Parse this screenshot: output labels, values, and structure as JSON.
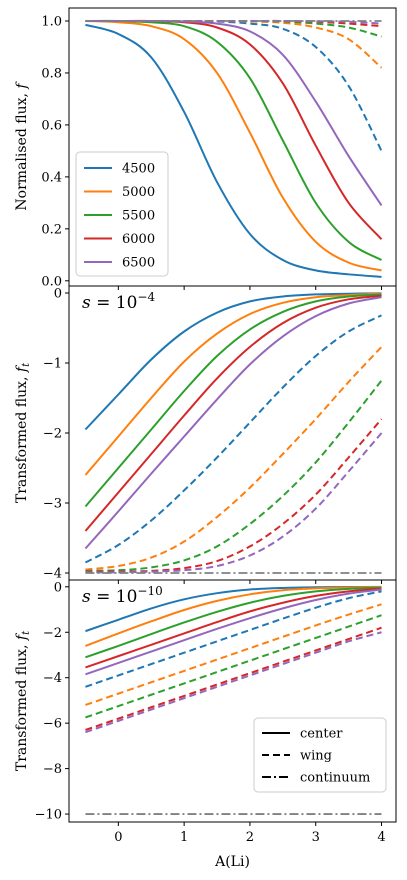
{
  "colors": {
    "4500": "#1f77b4",
    "5000": "#ff7f0e",
    "5500": "#2ca02c",
    "6000": "#d62728",
    "6500": "#9467bd",
    "continuum": "#808080",
    "legend_line": "#000000"
  },
  "chart_data": [
    {
      "type": "line",
      "panel": "top",
      "ylabel": "Normalised flux, f",
      "ylim": [
        -0.02,
        1.05
      ],
      "yticks": [
        0.0,
        0.2,
        0.4,
        0.6,
        0.8,
        1.0
      ],
      "ytick_labels": [
        "0.0",
        "0.2",
        "0.4",
        "0.6",
        "0.8",
        "1.0"
      ],
      "x": [
        -0.5,
        0.0,
        0.5,
        1.0,
        1.5,
        2.0,
        2.5,
        3.0,
        3.5,
        4.0
      ],
      "series": [
        {
          "name": "4500",
          "style": "center",
          "color": "4500",
          "values": [
            0.985,
            0.95,
            0.86,
            0.65,
            0.38,
            0.18,
            0.08,
            0.04,
            0.025,
            0.015
          ]
        },
        {
          "name": "5000",
          "style": "center",
          "color": "5000",
          "values": [
            1.0,
            0.995,
            0.98,
            0.93,
            0.8,
            0.57,
            0.32,
            0.15,
            0.07,
            0.04
          ]
        },
        {
          "name": "5500",
          "style": "center",
          "color": "5500",
          "values": [
            1.0,
            1.0,
            0.995,
            0.98,
            0.92,
            0.78,
            0.54,
            0.3,
            0.15,
            0.08
          ]
        },
        {
          "name": "6000",
          "style": "center",
          "color": "6000",
          "values": [
            1.0,
            1.0,
            1.0,
            0.995,
            0.975,
            0.91,
            0.76,
            0.52,
            0.3,
            0.16
          ]
        },
        {
          "name": "6500",
          "style": "center",
          "color": "6500",
          "values": [
            1.0,
            1.0,
            1.0,
            0.998,
            0.99,
            0.96,
            0.87,
            0.69,
            0.48,
            0.29
          ]
        },
        {
          "name": "4500",
          "style": "wing",
          "color": "4500",
          "values": [
            1.0,
            1.0,
            1.0,
            1.0,
            0.998,
            0.99,
            0.97,
            0.9,
            0.75,
            0.5
          ]
        },
        {
          "name": "5000",
          "style": "wing",
          "color": "5000",
          "values": [
            1.0,
            1.0,
            1.0,
            1.0,
            1.0,
            0.998,
            0.993,
            0.975,
            0.93,
            0.82
          ]
        },
        {
          "name": "5500",
          "style": "wing",
          "color": "5500",
          "values": [
            1.0,
            1.0,
            1.0,
            1.0,
            1.0,
            1.0,
            0.998,
            0.99,
            0.975,
            0.94
          ]
        },
        {
          "name": "6000",
          "style": "wing",
          "color": "6000",
          "values": [
            1.0,
            1.0,
            1.0,
            1.0,
            1.0,
            1.0,
            1.0,
            0.997,
            0.99,
            0.98
          ]
        },
        {
          "name": "6500",
          "style": "wing",
          "color": "6500",
          "values": [
            1.0,
            1.0,
            1.0,
            1.0,
            1.0,
            1.0,
            1.0,
            0.999,
            0.997,
            0.99
          ]
        },
        {
          "name": "",
          "style": "continuum",
          "color": "continuum",
          "values": [
            1.0,
            1.0,
            1.0,
            1.0,
            1.0,
            1.0,
            1.0,
            1.0,
            1.0,
            1.0
          ]
        }
      ],
      "legend": {
        "placement": "lower-left",
        "entries": [
          "4500",
          "5000",
          "5500",
          "6000",
          "6500"
        ]
      }
    },
    {
      "type": "line",
      "panel": "middle",
      "ylabel": "Transformed flux, f_t",
      "annotation": "s = 10^-4",
      "ylim": [
        -4.1,
        0.1
      ],
      "yticks": [
        -4,
        -3,
        -2,
        -1,
        0
      ],
      "ytick_labels": [
        "−4",
        "−3",
        "−2",
        "−1",
        "0"
      ],
      "x": [
        -0.5,
        0.0,
        0.5,
        1.0,
        1.5,
        2.0,
        2.5,
        3.0,
        3.5,
        4.0
      ],
      "series": [
        {
          "name": "4500",
          "style": "center",
          "color": "4500",
          "values": [
            -1.95,
            -1.45,
            -0.95,
            -0.55,
            -0.28,
            -0.12,
            -0.05,
            -0.02,
            -0.01,
            -0.005
          ]
        },
        {
          "name": "5000",
          "style": "center",
          "color": "5000",
          "values": [
            -2.6,
            -2.05,
            -1.5,
            -0.98,
            -0.58,
            -0.3,
            -0.14,
            -0.06,
            -0.03,
            -0.01
          ]
        },
        {
          "name": "5500",
          "style": "center",
          "color": "5500",
          "values": [
            -3.05,
            -2.5,
            -1.95,
            -1.4,
            -0.9,
            -0.52,
            -0.27,
            -0.12,
            -0.05,
            -0.02
          ]
        },
        {
          "name": "6000",
          "style": "center",
          "color": "6000",
          "values": [
            -3.4,
            -2.85,
            -2.3,
            -1.75,
            -1.22,
            -0.77,
            -0.43,
            -0.21,
            -0.09,
            -0.04
          ]
        },
        {
          "name": "6500",
          "style": "center",
          "color": "6500",
          "values": [
            -3.65,
            -3.12,
            -2.58,
            -2.05,
            -1.52,
            -1.02,
            -0.62,
            -0.33,
            -0.15,
            -0.06
          ]
        },
        {
          "name": "4500",
          "style": "wing",
          "color": "4500",
          "values": [
            -3.85,
            -3.6,
            -3.25,
            -2.82,
            -2.35,
            -1.85,
            -1.35,
            -0.9,
            -0.55,
            -0.32
          ]
        },
        {
          "name": "5000",
          "style": "wing",
          "color": "5000",
          "values": [
            -3.95,
            -3.9,
            -3.78,
            -3.55,
            -3.2,
            -2.78,
            -2.3,
            -1.8,
            -1.27,
            -0.77
          ]
        },
        {
          "name": "5500",
          "style": "wing",
          "color": "5500",
          "values": [
            -3.97,
            -3.96,
            -3.92,
            -3.82,
            -3.62,
            -3.3,
            -2.9,
            -2.42,
            -1.85,
            -1.25
          ]
        },
        {
          "name": "6000",
          "style": "wing",
          "color": "6000",
          "values": [
            -3.98,
            -3.98,
            -3.97,
            -3.93,
            -3.83,
            -3.62,
            -3.3,
            -2.88,
            -2.35,
            -1.8
          ]
        },
        {
          "name": "6500",
          "style": "wing",
          "color": "6500",
          "values": [
            -3.99,
            -3.99,
            -3.98,
            -3.96,
            -3.9,
            -3.75,
            -3.48,
            -3.08,
            -2.55,
            -2.0
          ]
        },
        {
          "name": "",
          "style": "continuum",
          "color": "continuum",
          "values": [
            -4.0,
            -4.0,
            -4.0,
            -4.0,
            -4.0,
            -4.0,
            -4.0,
            -4.0,
            -4.0,
            -4.0
          ]
        }
      ]
    },
    {
      "type": "line",
      "panel": "bottom",
      "ylabel": "Transformed flux, f_t",
      "annotation": "s = 10^-10",
      "xlabel": "A(Li)",
      "ylim": [
        -10.35,
        0.3
      ],
      "yticks": [
        -10,
        -8,
        -6,
        -4,
        -2,
        0
      ],
      "ytick_labels": [
        "−10",
        "−8",
        "−6",
        "−4",
        "−2",
        "0"
      ],
      "xticks": [
        0,
        1,
        2,
        3,
        4
      ],
      "xtick_labels": [
        "0",
        "1",
        "2",
        "3",
        "4"
      ],
      "xlim": [
        -0.75,
        4.22
      ],
      "x": [
        -0.5,
        0.0,
        0.5,
        1.0,
        1.5,
        2.0,
        2.5,
        3.0,
        3.5,
        4.0
      ],
      "series": [
        {
          "name": "4500",
          "style": "center",
          "color": "4500",
          "values": [
            -1.95,
            -1.45,
            -0.95,
            -0.55,
            -0.28,
            -0.12,
            -0.05,
            -0.02,
            -0.01,
            -0.005
          ]
        },
        {
          "name": "5000",
          "style": "center",
          "color": "5000",
          "values": [
            -2.6,
            -2.05,
            -1.52,
            -1.02,
            -0.62,
            -0.33,
            -0.15,
            -0.07,
            -0.03,
            -0.01
          ]
        },
        {
          "name": "5500",
          "style": "center",
          "color": "5500",
          "values": [
            -3.1,
            -2.6,
            -2.08,
            -1.57,
            -1.1,
            -0.7,
            -0.4,
            -0.2,
            -0.09,
            -0.04
          ]
        },
        {
          "name": "6000",
          "style": "center",
          "color": "6000",
          "values": [
            -3.55,
            -3.05,
            -2.55,
            -2.05,
            -1.55,
            -1.08,
            -0.7,
            -0.4,
            -0.2,
            -0.08
          ]
        },
        {
          "name": "6500",
          "style": "center",
          "color": "6500",
          "values": [
            -3.85,
            -3.35,
            -2.85,
            -2.35,
            -1.85,
            -1.38,
            -0.95,
            -0.58,
            -0.3,
            -0.12
          ]
        },
        {
          "name": "4500",
          "style": "wing",
          "color": "4500",
          "values": [
            -4.4,
            -3.9,
            -3.4,
            -2.9,
            -2.4,
            -1.9,
            -1.4,
            -0.92,
            -0.5,
            -0.2
          ]
        },
        {
          "name": "5000",
          "style": "wing",
          "color": "5000",
          "values": [
            -5.2,
            -4.7,
            -4.2,
            -3.7,
            -3.2,
            -2.7,
            -2.2,
            -1.7,
            -1.22,
            -0.77
          ]
        },
        {
          "name": "5500",
          "style": "wing",
          "color": "5500",
          "values": [
            -5.75,
            -5.25,
            -4.75,
            -4.25,
            -3.75,
            -3.25,
            -2.75,
            -2.25,
            -1.75,
            -1.25
          ]
        },
        {
          "name": "6000",
          "style": "wing",
          "color": "6000",
          "values": [
            -6.3,
            -5.8,
            -5.3,
            -4.8,
            -4.3,
            -3.8,
            -3.3,
            -2.8,
            -2.3,
            -1.8
          ]
        },
        {
          "name": "6500",
          "style": "wing",
          "color": "6500",
          "values": [
            -6.4,
            -5.9,
            -5.4,
            -4.9,
            -4.4,
            -3.9,
            -3.4,
            -2.9,
            -2.4,
            -2.0
          ]
        },
        {
          "name": "",
          "style": "continuum",
          "color": "continuum",
          "values": [
            -10.0,
            -10.0,
            -10.0,
            -10.0,
            -10.0,
            -10.0,
            -10.0,
            -10.0,
            -10.0,
            -10.0
          ]
        }
      ],
      "legend": {
        "placement": "lower-right",
        "entries": [
          "center",
          "wing",
          "continuum"
        ]
      }
    }
  ]
}
